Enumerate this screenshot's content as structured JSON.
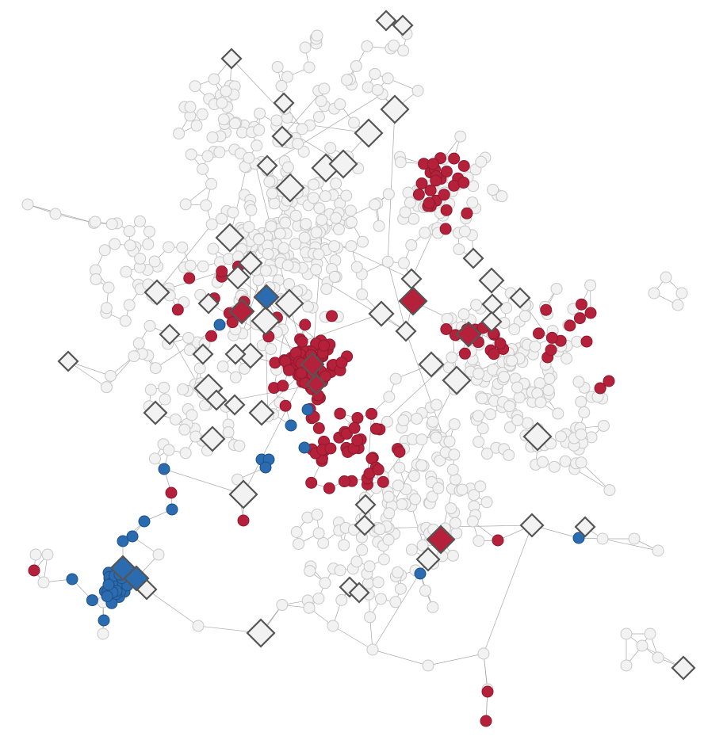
{
  "diagram": {
    "type": "network-graph",
    "node_shapes": [
      "circle",
      "diamond"
    ],
    "colors": {
      "background": "#ffffff",
      "edge": "#a8a8a8",
      "neutral_fill": "#f2f2f2",
      "neutral_stroke": "#c8c8c8",
      "red_fill": "#b5213a",
      "red_stroke": "#8e1a2d",
      "blue_fill": "#2b6cb0",
      "blue_stroke": "#1f4f85",
      "diamond_stroke": "#555555"
    },
    "node_groups": [
      "neutral",
      "red",
      "blue"
    ]
  }
}
